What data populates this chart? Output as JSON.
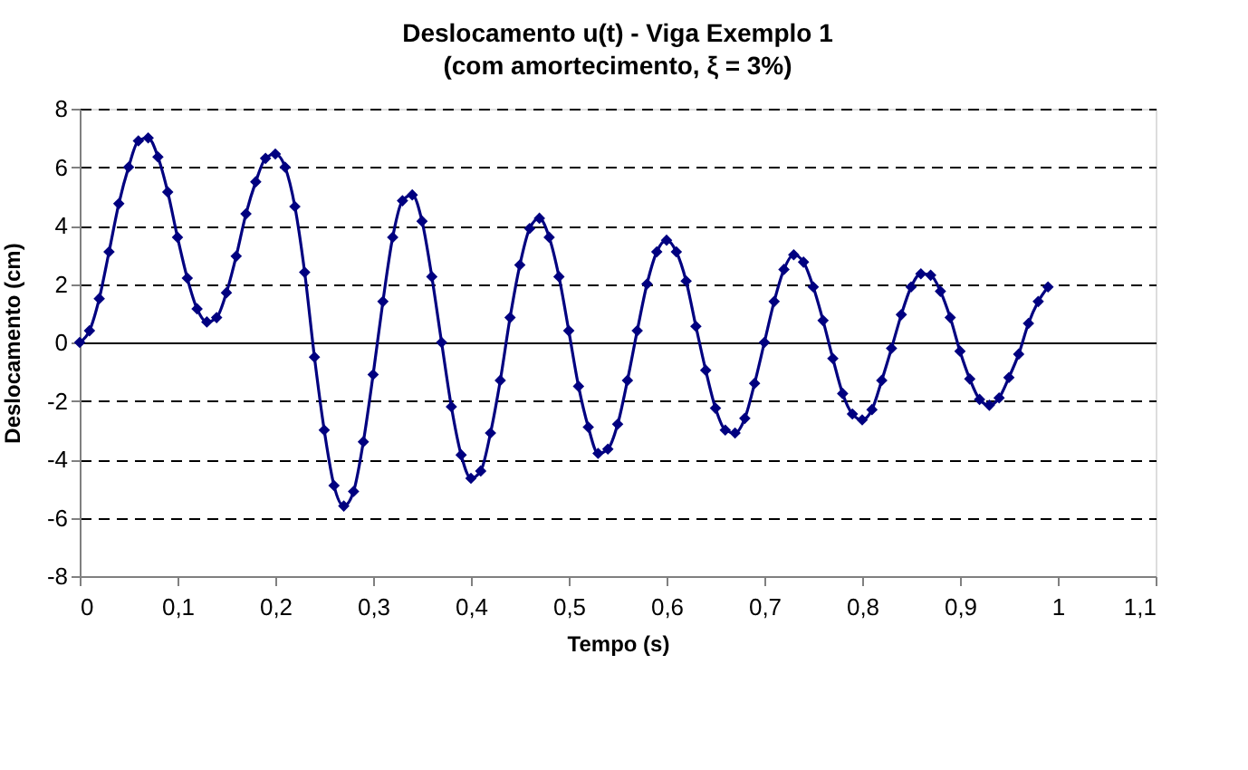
{
  "chart_data": {
    "type": "line",
    "title": "Deslocamento u(t) - Viga Exemplo 1",
    "subtitle": "(com amortecimento, ξ = 3%)",
    "xlabel": "Tempo (s)",
    "ylabel": "Deslocamento (cm)",
    "x": [
      0,
      0.01,
      0.02,
      0.03,
      0.04,
      0.05,
      0.06,
      0.07,
      0.08,
      0.09,
      0.1,
      0.11,
      0.12,
      0.13,
      0.14,
      0.15,
      0.16,
      0.17,
      0.18,
      0.19,
      0.2,
      0.21,
      0.22,
      0.23,
      0.24,
      0.25,
      0.26,
      0.27,
      0.28,
      0.29,
      0.3,
      0.31,
      0.32,
      0.33,
      0.34,
      0.35,
      0.36,
      0.37,
      0.38,
      0.39,
      0.4,
      0.41,
      0.42,
      0.43,
      0.44,
      0.45,
      0.46,
      0.47,
      0.48,
      0.49,
      0.5,
      0.51,
      0.52,
      0.53,
      0.54,
      0.55,
      0.56,
      0.57,
      0.58,
      0.59,
      0.6,
      0.61,
      0.62,
      0.63,
      0.64,
      0.65,
      0.66,
      0.67,
      0.68,
      0.69,
      0.7,
      0.71,
      0.72,
      0.73,
      0.74,
      0.75,
      0.76,
      0.77,
      0.78,
      0.79,
      0.8,
      0.81,
      0.82,
      0.83,
      0.84,
      0.85,
      0.86,
      0.87,
      0.88,
      0.89,
      0.9,
      0.91,
      0.92,
      0.93,
      0.94,
      0.95,
      0.96,
      0.97,
      0.98,
      0.99
    ],
    "series": [
      {
        "color": "#000080",
        "values": [
          0,
          0.4,
          1.5,
          3.1,
          4.75,
          6.0,
          6.9,
          7.0,
          6.35,
          5.15,
          3.6,
          2.2,
          1.15,
          0.7,
          0.85,
          1.7,
          2.95,
          4.4,
          5.5,
          6.3,
          6.45,
          6.0,
          4.65,
          2.4,
          -0.5,
          -3.0,
          -4.9,
          -5.6,
          -5.1,
          -3.4,
          -1.1,
          1.4,
          3.6,
          4.85,
          5.05,
          4.15,
          2.25,
          0,
          -2.2,
          -3.85,
          -4.65,
          -4.4,
          -3.1,
          -1.3,
          0.85,
          2.65,
          3.9,
          4.25,
          3.6,
          2.25,
          0.4,
          -1.5,
          -2.9,
          -3.8,
          -3.65,
          -2.8,
          -1.3,
          0.4,
          2.0,
          3.1,
          3.5,
          3.1,
          2.1,
          0.55,
          -0.95,
          -2.25,
          -3.0,
          -3.1,
          -2.6,
          -1.4,
          0,
          1.4,
          2.5,
          3.0,
          2.75,
          1.9,
          0.75,
          -0.55,
          -1.75,
          -2.45,
          -2.65,
          -2.3,
          -1.3,
          -0.2,
          0.95,
          1.9,
          2.35,
          2.3,
          1.75,
          0.85,
          -0.3,
          -1.25,
          -1.95,
          -2.15,
          -1.9,
          -1.2,
          -0.4,
          0.65,
          1.4,
          1.9
        ]
      }
    ],
    "xlim": [
      0,
      1.1
    ],
    "xticks": [
      0,
      {
        "value": 0.1,
        "label": "0,1"
      },
      {
        "value": 0.2,
        "label": "0,2"
      },
      {
        "value": 0.3,
        "label": "0,3"
      },
      {
        "value": 0.4,
        "label": "0,4"
      },
      {
        "value": 0.5,
        "label": "0,5"
      },
      {
        "value": 0.6,
        "label": "0,6"
      },
      {
        "value": 0.7,
        "label": "0,7"
      },
      {
        "value": 0.8,
        "label": "0,8"
      },
      {
        "value": 0.9,
        "label": "0,9"
      },
      1,
      {
        "value": 1.1,
        "label": "1,1"
      }
    ],
    "ylim": [
      -8,
      8
    ],
    "yticks": [
      -8,
      -6,
      -4,
      -2,
      0,
      2,
      4,
      6,
      8
    ],
    "grid": "y",
    "marker": "diamond",
    "line_style": "solid"
  }
}
